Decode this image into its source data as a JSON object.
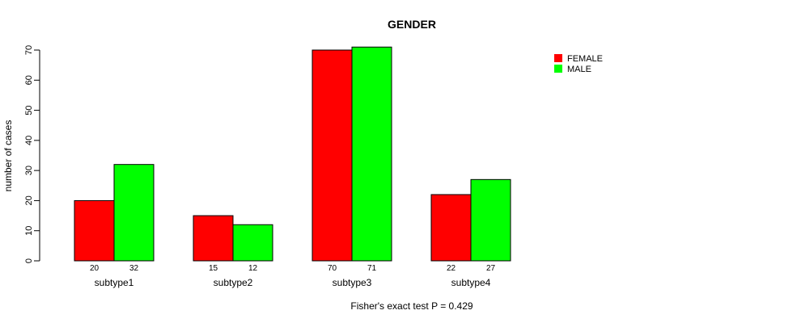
{
  "chart_data": {
    "type": "bar",
    "title": "GENDER",
    "xlabel": "",
    "ylabel": "number of cases",
    "categories": [
      "subtype1",
      "subtype2",
      "subtype3",
      "subtype4"
    ],
    "series": [
      {
        "name": "FEMALE",
        "color": "#ff0000",
        "values": [
          20,
          15,
          70,
          22
        ]
      },
      {
        "name": "MALE",
        "color": "#00ff00",
        "values": [
          32,
          12,
          71,
          27
        ]
      }
    ],
    "ylim": [
      0,
      70
    ],
    "yticks": [
      0,
      10,
      20,
      30,
      40,
      50,
      60,
      70
    ],
    "legend_position": "top-right",
    "grid": false,
    "footnote": "Fisher's exact test P = 0.429"
  }
}
